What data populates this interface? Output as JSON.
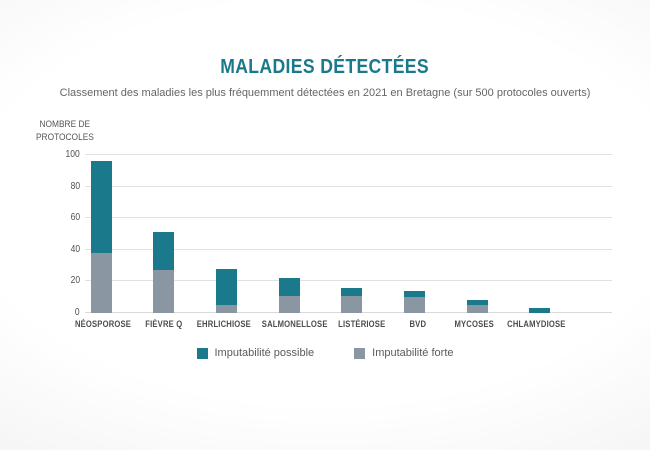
{
  "header": {
    "title": "MALADIES DÉTECTÉES",
    "subtitle": "Classement des maladies les plus fréquemment détectées en 2021 en Bretagne (sur 500 protocoles ouverts)"
  },
  "chart_data": {
    "type": "bar",
    "stacked": true,
    "title": "MALADIES DÉTECTÉES",
    "ylabel": "NOMBRE DE PROTOCOLES",
    "ylabel_lines": [
      "NOMBRE DE",
      "PROTOCOLES"
    ],
    "ylim": [
      0,
      100
    ],
    "yticks": [
      0,
      20,
      40,
      60,
      80,
      100
    ],
    "grid": true,
    "legend_position": "bottom",
    "categories": [
      "NÉOSPOROSE",
      "FIÈVRE Q",
      "EHRLICHIOSE",
      "SALMONELLOSE",
      "LISTÉRIOSE",
      "BVD",
      "MYCOSES",
      "CHLAMYDIOSE"
    ],
    "series": [
      {
        "name": "Imputabilité forte",
        "color": "#8A96A1",
        "values": [
          38,
          27,
          5,
          11,
          11,
          10,
          5,
          0
        ]
      },
      {
        "name": "Imputabilité possible",
        "color": "#1A798B",
        "values": [
          58,
          24,
          23,
          11,
          5,
          4,
          3,
          3
        ]
      }
    ],
    "totals": [
      96,
      51,
      28,
      22,
      16,
      14,
      8,
      3
    ]
  },
  "colors": {
    "accent_teal": "#1A798B",
    "slate_gray": "#8A96A1",
    "title_text": "#1A798B",
    "subtitle_text": "#666666",
    "axis_text": "#4f4f4f",
    "gridline": "#E1E1E1"
  }
}
